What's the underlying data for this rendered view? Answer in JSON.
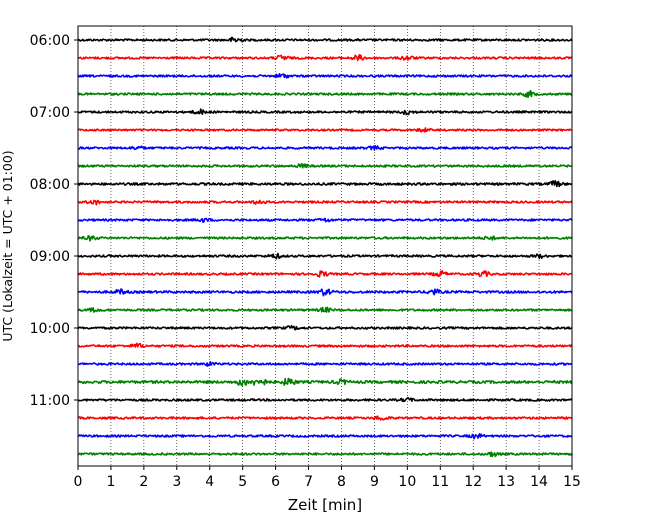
{
  "chart_data": {
    "type": "line",
    "subtype": "helicorder",
    "xlabel": "Zeit  [min]",
    "ylabel": "UTC (Lokalzeit = UTC + 01:00)",
    "xlim": [
      0,
      15
    ],
    "x_ticks": [
      "0",
      "1",
      "2",
      "3",
      "4",
      "5",
      "6",
      "7",
      "8",
      "9",
      "10",
      "11",
      "12",
      "13",
      "14",
      "15"
    ],
    "y_ticks": [
      "06:00",
      "07:00",
      "08:00",
      "09:00",
      "10:00",
      "11:00"
    ],
    "row_interval_min": 15,
    "grid": "vertical-dotted",
    "line_colors": [
      "#000000",
      "#ff0000",
      "#0000ff",
      "#008000"
    ],
    "rows": [
      {
        "start": "06:00",
        "color": "#000000",
        "amplitude": 2.0,
        "events": [
          {
            "t": 4.8,
            "a": 6
          }
        ]
      },
      {
        "start": "06:15",
        "color": "#ff0000",
        "amplitude": 2.0,
        "events": [
          {
            "t": 6.2,
            "a": 5
          },
          {
            "t": 8.5,
            "a": 5
          },
          {
            "t": 10.0,
            "a": 4
          }
        ]
      },
      {
        "start": "06:30",
        "color": "#0000ff",
        "amplitude": 2.0,
        "events": [
          {
            "t": 6.2,
            "a": 4
          }
        ]
      },
      {
        "start": "06:45",
        "color": "#008000",
        "amplitude": 2.0,
        "events": [
          {
            "t": 13.7,
            "a": 5
          }
        ]
      },
      {
        "start": "07:00",
        "color": "#000000",
        "amplitude": 2.0,
        "events": [
          {
            "t": 3.7,
            "a": 4
          },
          {
            "t": 10.0,
            "a": 4
          }
        ]
      },
      {
        "start": "07:15",
        "color": "#ff0000",
        "amplitude": 1.8,
        "events": [
          {
            "t": 10.5,
            "a": 3
          }
        ]
      },
      {
        "start": "07:30",
        "color": "#0000ff",
        "amplitude": 2.0,
        "events": [
          {
            "t": 1.8,
            "a": 3
          },
          {
            "t": 9.0,
            "a": 3
          }
        ]
      },
      {
        "start": "07:45",
        "color": "#008000",
        "amplitude": 2.0,
        "events": [
          {
            "t": 6.8,
            "a": 3
          }
        ]
      },
      {
        "start": "08:00",
        "color": "#000000",
        "amplitude": 2.2,
        "events": [
          {
            "t": 14.5,
            "a": 5
          }
        ]
      },
      {
        "start": "08:15",
        "color": "#ff0000",
        "amplitude": 2.0,
        "events": [
          {
            "t": 0.5,
            "a": 4
          },
          {
            "t": 5.5,
            "a": 4
          }
        ]
      },
      {
        "start": "08:30",
        "color": "#0000ff",
        "amplitude": 2.0,
        "events": [
          {
            "t": 3.8,
            "a": 3
          },
          {
            "t": 7.5,
            "a": 3
          }
        ]
      },
      {
        "start": "08:45",
        "color": "#008000",
        "amplitude": 2.0,
        "events": [
          {
            "t": 0.4,
            "a": 4
          },
          {
            "t": 12.5,
            "a": 3
          }
        ]
      },
      {
        "start": "09:00",
        "color": "#000000",
        "amplitude": 2.0,
        "events": [
          {
            "t": 6.0,
            "a": 4
          },
          {
            "t": 14.0,
            "a": 3
          }
        ]
      },
      {
        "start": "09:15",
        "color": "#ff0000",
        "amplitude": 2.0,
        "events": [
          {
            "t": 7.4,
            "a": 5
          },
          {
            "t": 11.0,
            "a": 5
          },
          {
            "t": 12.3,
            "a": 5
          }
        ]
      },
      {
        "start": "09:30",
        "color": "#0000ff",
        "amplitude": 2.2,
        "events": [
          {
            "t": 1.3,
            "a": 4
          },
          {
            "t": 7.5,
            "a": 6
          },
          {
            "t": 10.8,
            "a": 5
          }
        ]
      },
      {
        "start": "09:45",
        "color": "#008000",
        "amplitude": 2.0,
        "events": [
          {
            "t": 0.5,
            "a": 3
          },
          {
            "t": 7.5,
            "a": 4
          }
        ]
      },
      {
        "start": "10:00",
        "color": "#000000",
        "amplitude": 2.0,
        "events": [
          {
            "t": 6.5,
            "a": 3
          }
        ]
      },
      {
        "start": "10:15",
        "color": "#ff0000",
        "amplitude": 2.0,
        "events": [
          {
            "t": 1.8,
            "a": 4
          }
        ]
      },
      {
        "start": "10:30",
        "color": "#0000ff",
        "amplitude": 2.0,
        "events": [
          {
            "t": 4.0,
            "a": 3
          }
        ]
      },
      {
        "start": "10:45",
        "color": "#008000",
        "amplitude": 2.5,
        "events": [
          {
            "t": 5.0,
            "a": 6
          },
          {
            "t": 5.5,
            "a": 9
          },
          {
            "t": 6.4,
            "a": 7
          },
          {
            "t": 8.0,
            "a": 4
          }
        ]
      },
      {
        "start": "11:00",
        "color": "#000000",
        "amplitude": 2.0,
        "events": [
          {
            "t": 10.0,
            "a": 3
          }
        ]
      },
      {
        "start": "11:15",
        "color": "#ff0000",
        "amplitude": 2.0,
        "events": [
          {
            "t": 9.2,
            "a": 4
          }
        ]
      },
      {
        "start": "11:30",
        "color": "#0000ff",
        "amplitude": 2.0,
        "events": [
          {
            "t": 12.1,
            "a": 4
          }
        ]
      },
      {
        "start": "11:45",
        "color": "#008000",
        "amplitude": 2.0,
        "events": [
          {
            "t": 12.6,
            "a": 4
          }
        ]
      }
    ]
  }
}
